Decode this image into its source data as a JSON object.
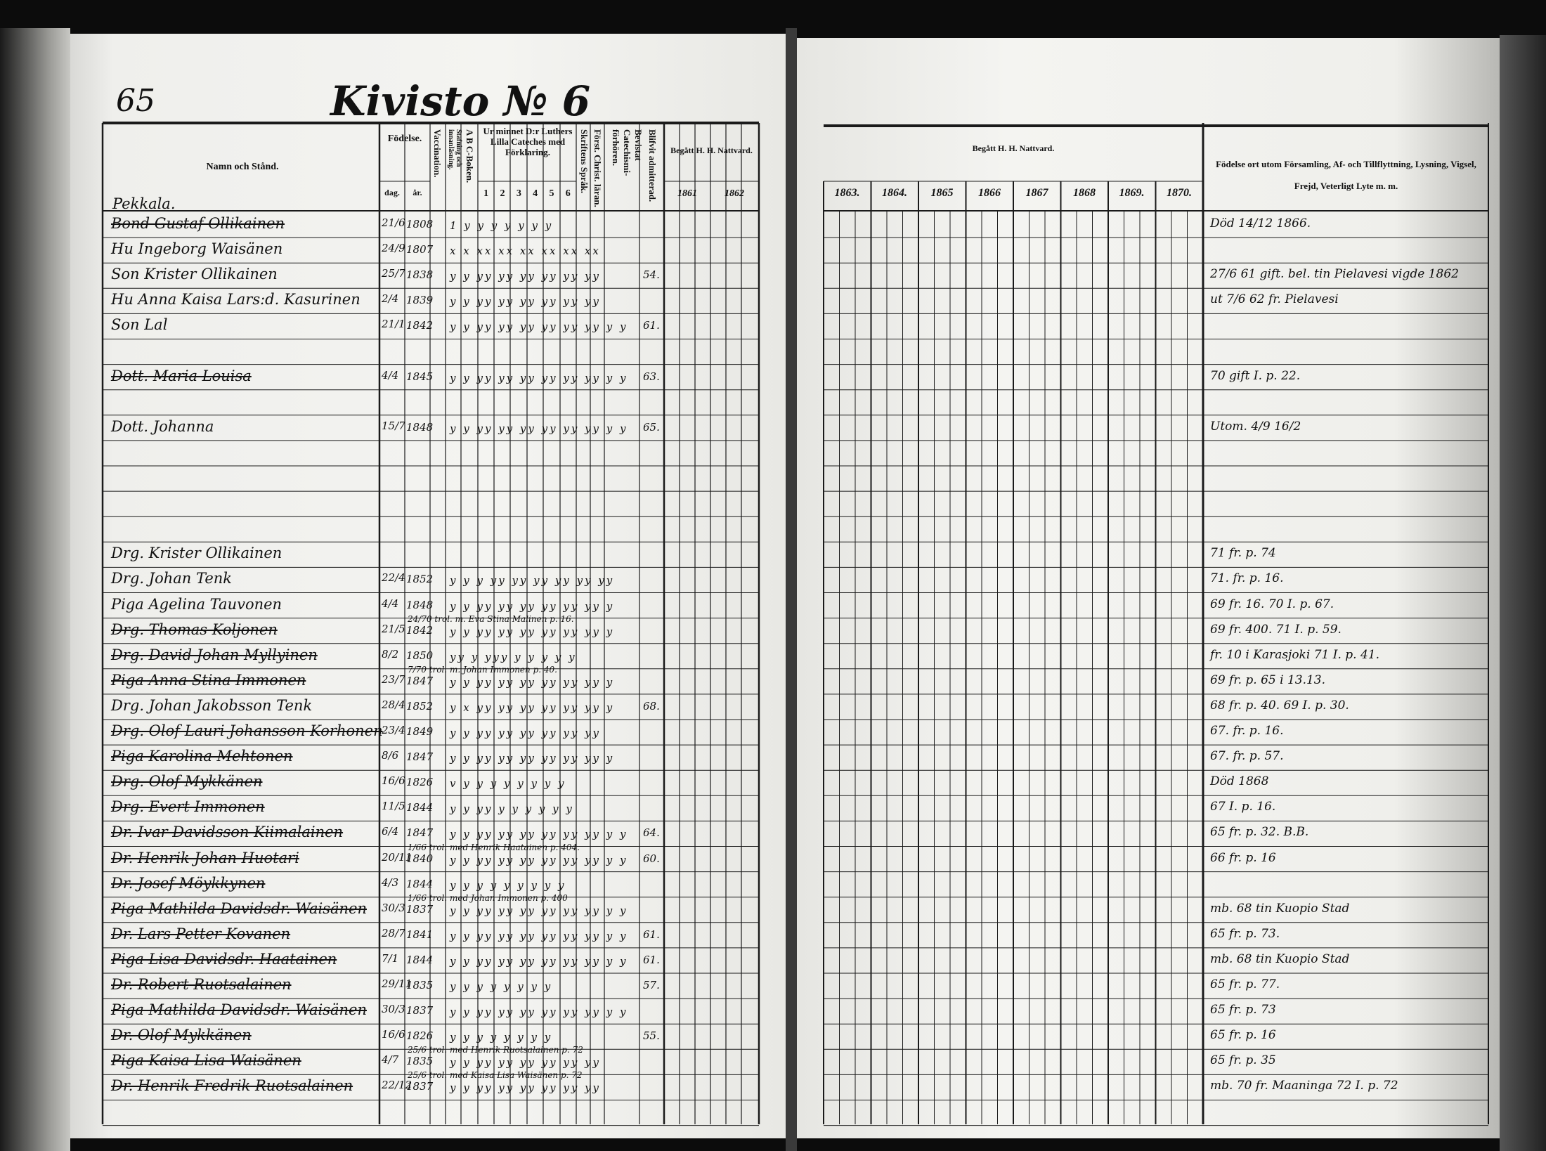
{
  "page_number": "65",
  "title": "Kivisto № 6",
  "left_header": {
    "name_col": "Namn och Stånd.",
    "birth": "Födelse.",
    "birth_day": "dag.",
    "birth_year": "år.",
    "vaccination": "Vaccination.",
    "reading": "Stafning och innanläsning.",
    "abc": "A B C-Boken.",
    "catechism": "Ur minnet D:r Luthers Lilla Cateches med Förklaring.",
    "catechism_nums": [
      "1",
      "2",
      "3",
      "4",
      "5",
      "6"
    ],
    "scripture": "Skriftens Språk.",
    "christ": "Först. Christ. läran.",
    "attended": "Bevistat Catechismi-förhören.",
    "admitted": "Blifvit admitterad.",
    "communion": "Begått H. H. Nattvard.",
    "communion_years": [
      "1861",
      "1862"
    ]
  },
  "right_header": {
    "communion": "Begått H. H. Nattvard.",
    "years": [
      "1863.",
      "1864.",
      "1865",
      "1866",
      "1867",
      "1868",
      "1869.",
      "1870."
    ],
    "notes": "Födelse ort utom Församling, Af- och Tillflyttning, Lysning, Vigsel, Frejd, Veterligt Lyte m. m."
  },
  "section_label": "Pekkala.",
  "entries": [
    {
      "row": 0,
      "name": "Bond Gustaf Ollikainen",
      "struck": true,
      "day": "21/6",
      "year": "1808",
      "marks": "1 y y y y y y y",
      "admitted": "",
      "note": "Död 14/12 1866."
    },
    {
      "row": 1,
      "name": "Hu Ingeborg Waisänen",
      "struck": false,
      "day": "24/9",
      "year": "1807",
      "marks": "x x xx xx xx xx xx xx",
      "admitted": "",
      "note": ""
    },
    {
      "row": 2,
      "name": "Son Krister Ollikainen",
      "struck": false,
      "day": "25/7",
      "year": "1838",
      "marks": "y y yy yy yy yy yy yy",
      "admitted": "54.",
      "note": "27/6 61 gift. bel. tin Pielavesi vigde 1862"
    },
    {
      "row": 3,
      "name": "Hu Anna Kaisa Lars:d. Kasurinen",
      "struck": false,
      "day": "2/4",
      "year": "1839",
      "marks": "y y yy yy yy yy yy yy",
      "admitted": "",
      "note": "ut 7/6 62 fr. Pielavesi"
    },
    {
      "row": 4,
      "name": "Son Lal",
      "struck": false,
      "day": "21/1",
      "year": "1842",
      "marks": "y y yy yy yy yy yy yy y y",
      "admitted": "61.",
      "note": ""
    },
    {
      "row": 6,
      "name": "Dott. Maria Louisa",
      "struck": true,
      "day": "4/4",
      "year": "1845",
      "marks": "y y yy yy yy yy yy yy y y",
      "admitted": "63.",
      "note": "70 gift I. p. 22."
    },
    {
      "row": 8,
      "name": "Dott. Johanna",
      "struck": false,
      "day": "15/7",
      "year": "1848",
      "marks": "y y yy yy yy yy yy yy y y",
      "admitted": "65.",
      "note": "Utom. 4/9 16/2"
    },
    {
      "row": 13,
      "name": "Drg. Krister Ollikainen",
      "struck": false,
      "day": "",
      "year": "",
      "marks": "",
      "admitted": "",
      "note": "71 fr. p. 74"
    },
    {
      "row": 14,
      "name": "Drg. Johan Tenk",
      "struck": false,
      "day": "22/4",
      "year": "1852",
      "marks": "y y y yy yy yy yy yy yy",
      "admitted": "",
      "note": "71. fr. p. 16."
    },
    {
      "row": 15,
      "name": "Piga Agelina Tauvonen",
      "struck": false,
      "day": "4/4",
      "year": "1848",
      "marks": "y y yy yy yy yy yy yy y",
      "admitted": "",
      "note": "69 fr. 16. 70 I. p. 67."
    },
    {
      "row": 16,
      "name": "Drg. Thomas Koljonen",
      "struck": true,
      "day": "21/5",
      "year": "1842",
      "marks": "y y yy yy yy yy yy yy y",
      "admitted": "",
      "note": "69 fr. 400. 71 I. p. 59."
    },
    {
      "row": 17,
      "name": "Drg. David Johan Myllyinen",
      "struck": true,
      "day": "8/2",
      "year": "1850",
      "marks": "yy y yyy y y y y y",
      "admitted": "",
      "note": "fr. 10 i Karasjoki 71 I. p. 41."
    },
    {
      "row": 18,
      "name": "Piga Anna Stina Immonen",
      "struck": true,
      "day": "23/7",
      "year": "1847",
      "marks": "y y yy yy yy yy yy yy y",
      "admitted": "",
      "note": "69 fr. p. 65 i 13.13."
    },
    {
      "row": 19,
      "name": "Drg. Johan Jakobsson Tenk",
      "struck": false,
      "day": "28/4",
      "year": "1852",
      "marks": "y x yy yy yy yy yy yy y",
      "admitted": "68.",
      "note": "68 fr. p. 40. 69 I. p. 30."
    },
    {
      "row": 20,
      "name": "Drg. Olof Lauri Johansson Korhonen",
      "struck": true,
      "day": "23/4",
      "year": "1849",
      "marks": "y y yy yy yy yy yy yy",
      "admitted": "",
      "note": "67. fr. p. 16."
    },
    {
      "row": 21,
      "name": "Piga Karolina Mehtonen",
      "struck": true,
      "day": "8/6",
      "year": "1847",
      "marks": "y y yy yy yy yy yy yy y",
      "admitted": "",
      "note": "67. fr. p. 57."
    },
    {
      "row": 22,
      "name": "Drg. Olof Mykkänen",
      "struck": true,
      "day": "16/6",
      "year": "1826",
      "marks": "v y y y y y y y y",
      "admitted": "",
      "note": "Död 1868"
    },
    {
      "row": 23,
      "name": "Drg. Evert Immonen",
      "struck": true,
      "day": "11/5",
      "year": "1844",
      "marks": "y y yy y y y y y y",
      "admitted": "",
      "note": "67 I. p. 16."
    },
    {
      "row": 24,
      "name": "Dr. Ivar Davidsson Kiimalainen",
      "struck": true,
      "day": "6/4",
      "year": "1847",
      "marks": "y y yy yy yy yy yy yy y y",
      "admitted": "64.",
      "note": "65 fr. p. 32. B.B."
    },
    {
      "row": 25,
      "name": "Dr. Henrik Johan Huotari",
      "struck": true,
      "day": "20/11",
      "year": "1840",
      "marks": "y y yy yy yy yy yy yy y y",
      "admitted": "60.",
      "note": "66 fr. p. 16"
    },
    {
      "row": 26,
      "name": "Dr. Josef Möykkynen",
      "struck": true,
      "day": "4/3",
      "year": "1844",
      "marks": "y y y y y y y y y",
      "admitted": "",
      "note": ""
    },
    {
      "row": 27,
      "name": "Piga Mathilda Davidsdr. Waisänen",
      "struck": true,
      "day": "30/3",
      "year": "1837",
      "marks": "y y yy yy yy yy yy yy y y",
      "admitted": "",
      "note": "mb. 68 tin Kuopio Stad"
    },
    {
      "row": 28,
      "name": "Dr. Lars Petter Kovanen",
      "struck": true,
      "day": "28/7",
      "year": "1841",
      "marks": "y y yy yy yy yy yy yy y y",
      "admitted": "61.",
      "note": "65 fr. p. 73."
    },
    {
      "row": 29,
      "name": "Piga Lisa Davidsdr. Haatainen",
      "struck": true,
      "day": "7/1",
      "year": "1844",
      "marks": "y y yy yy yy yy yy yy y y",
      "admitted": "61.",
      "note": "mb. 68 tin Kuopio Stad"
    },
    {
      "row": 30,
      "name": "Dr. Robert Ruotsalainen",
      "struck": true,
      "day": "29/11",
      "year": "1835",
      "marks": "y y y y y y y y",
      "admitted": "57.",
      "note": "65 fr. p. 77."
    },
    {
      "row": 31,
      "name": "Piga Mathilda Davidsdr. Waisänen",
      "struck": true,
      "day": "30/3",
      "year": "1837",
      "marks": "y y yy yy yy yy yy yy y y",
      "admitted": "",
      "note": "65 fr. p. 73"
    },
    {
      "row": 32,
      "name": "Dr. Olof Mykkänen",
      "struck": true,
      "day": "16/6",
      "year": "1826",
      "marks": "y y y y y y y y",
      "admitted": "55.",
      "note": "65 fr. p. 16"
    },
    {
      "row": 33,
      "name": "Piga Kaisa Lisa Waisänen",
      "struck": true,
      "day": "4/7",
      "year": "1835",
      "marks": "y y yy yy yy yy yy yy",
      "admitted": "",
      "note": "65 fr. p. 35"
    },
    {
      "row": 34,
      "name": "Dr. Henrik Fredrik Ruotsalainen",
      "struck": true,
      "day": "22/12",
      "year": "1837",
      "marks": "y y yy yy yy yy yy yy",
      "admitted": "",
      "note": "mb. 70 fr. Maaninga 72 I. p. 72"
    }
  ],
  "interlinear": [
    {
      "row": 16,
      "text": "24/70 trol. m. Eva Stina Malinen p. 16."
    },
    {
      "row": 18,
      "text": "7/70 trol. m. Johan Immonen p. 40."
    },
    {
      "row": 25,
      "text": "1/66 trol. med Henrik Haatainen p. 404."
    },
    {
      "row": 27,
      "text": "1/66 trol. med Johan Immonen p. 400"
    },
    {
      "row": 33,
      "text": "25/6 trol. med Henrik Ruotsalainen p. 72"
    },
    {
      "row": 34,
      "text": "25/6 trol. med Kaisa Lisa Waisänen p. 72"
    }
  ]
}
